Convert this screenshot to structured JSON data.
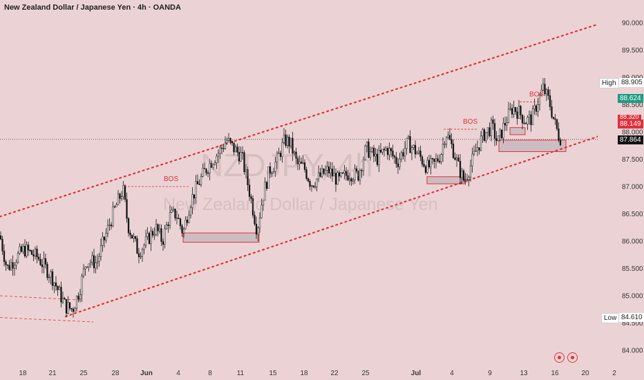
{
  "title": "New Zealand Dollar / Japanese Yen · 4h · OANDA",
  "watermark": {
    "symbol": "NZDJPY, 4h",
    "name": "New Zealand Dollar / Japanese Yen"
  },
  "price_labels": {
    "high_tag": "High",
    "high_value": "88.905",
    "low_tag": "Low",
    "low_value": "84.610",
    "green_value": "88.624",
    "red_value": "88.149",
    "red_top_value": "88.320",
    "current_value": "87.864",
    "colors": {
      "green": "#1f9b82",
      "red": "#e0303a",
      "current": "#131313"
    }
  },
  "icons": [
    "alert-circle-icon",
    "alert-circle-icon"
  ],
  "chart_data": {
    "type": "candlestick",
    "title": "New Zealand Dollar / Japanese Yen · 4h · OANDA",
    "y_ticks": [
      "90.000",
      "89.500",
      "89.000",
      "88.500",
      "88.000",
      "87.500",
      "87.000",
      "86.500",
      "86.000",
      "85.500",
      "85.000",
      "84.500",
      "84.000"
    ],
    "y_tick_values": [
      90.0,
      89.5,
      89.0,
      88.5,
      88.0,
      87.5,
      87.0,
      86.5,
      86.0,
      85.5,
      85.0,
      84.5,
      84.0
    ],
    "x_ticks": [
      "18",
      "21",
      "25",
      "28",
      "Jun",
      "4",
      "8",
      "11",
      "15",
      "18",
      "22",
      "25",
      "Jul",
      "4",
      "9",
      "13",
      "16",
      "20",
      "2"
    ],
    "ylim": [
      83.85,
      90.25
    ],
    "channel": {
      "upper": [
        [
          0,
          86.45
        ],
        [
          872,
          90.0
        ]
      ],
      "lower": [
        [
          95,
          84.62
        ],
        [
          880,
          87.98
        ]
      ]
    },
    "annotations": [
      {
        "text": "BOS",
        "at": [
          237,
          87.1
        ],
        "level": 87.0,
        "from_x": 180,
        "to_x": 275
      },
      {
        "text": "BOS",
        "at": [
          670,
          88.15
        ],
        "level": 88.05,
        "from_x": 642,
        "to_x": 690
      },
      {
        "text": "BOS",
        "at": [
          766,
          88.65
        ],
        "level": 88.55,
        "from_x": 752,
        "to_x": 780
      }
    ],
    "zones": [
      {
        "x1": 265,
        "x2": 375,
        "y_top": 86.15,
        "y_bot": 85.98
      },
      {
        "x1": 618,
        "x2": 672,
        "y_top": 87.18,
        "y_bot": 87.05
      },
      {
        "x1": 738,
        "x2": 760,
        "y_top": 88.08,
        "y_bot": 87.95
      },
      {
        "x1": 722,
        "x2": 819,
        "y_top": 87.85,
        "y_bot": 87.64
      }
    ],
    "close_path": [
      [
        0,
        86.1
      ],
      [
        10,
        85.5
      ],
      [
        20,
        85.65
      ],
      [
        35,
        85.85
      ],
      [
        55,
        85.7
      ],
      [
        75,
        85.35
      ],
      [
        95,
        84.8
      ],
      [
        105,
        84.75
      ],
      [
        115,
        85.1
      ],
      [
        125,
        85.65
      ],
      [
        140,
        85.6
      ],
      [
        150,
        86.0
      ],
      [
        165,
        86.55
      ],
      [
        178,
        86.95
      ],
      [
        185,
        86.3
      ],
      [
        200,
        85.8
      ],
      [
        210,
        85.95
      ],
      [
        225,
        86.25
      ],
      [
        235,
        86.0
      ],
      [
        245,
        86.45
      ],
      [
        255,
        86.5
      ],
      [
        265,
        86.15
      ],
      [
        275,
        86.7
      ],
      [
        285,
        87.0
      ],
      [
        295,
        87.25
      ],
      [
        305,
        87.45
      ],
      [
        318,
        87.65
      ],
      [
        328,
        87.85
      ],
      [
        338,
        87.7
      ],
      [
        350,
        87.55
      ],
      [
        362,
        86.85
      ],
      [
        372,
        86.2
      ],
      [
        380,
        86.8
      ],
      [
        390,
        87.3
      ],
      [
        400,
        87.45
      ],
      [
        412,
        87.85
      ],
      [
        420,
        87.8
      ],
      [
        430,
        87.4
      ],
      [
        440,
        87.35
      ],
      [
        450,
        87.05
      ],
      [
        460,
        87.15
      ],
      [
        475,
        87.3
      ],
      [
        490,
        87.1
      ],
      [
        505,
        87.25
      ],
      [
        518,
        87.2
      ],
      [
        530,
        87.7
      ],
      [
        545,
        87.5
      ],
      [
        560,
        87.7
      ],
      [
        575,
        87.45
      ],
      [
        590,
        87.8
      ],
      [
        605,
        87.6
      ],
      [
        618,
        87.35
      ],
      [
        628,
        87.4
      ],
      [
        638,
        87.6
      ],
      [
        645,
        88.0
      ],
      [
        655,
        87.7
      ],
      [
        665,
        87.3
      ],
      [
        672,
        87.1
      ],
      [
        680,
        87.35
      ],
      [
        690,
        87.7
      ],
      [
        700,
        87.95
      ],
      [
        712,
        88.1
      ],
      [
        720,
        87.8
      ],
      [
        732,
        88.2
      ],
      [
        742,
        88.45
      ],
      [
        752,
        88.35
      ],
      [
        760,
        88.2
      ],
      [
        770,
        88.25
      ],
      [
        778,
        88.55
      ],
      [
        786,
        88.8
      ],
      [
        795,
        88.55
      ],
      [
        802,
        88.2
      ],
      [
        808,
        87.95
      ],
      [
        813,
        87.86
      ]
    ]
  }
}
